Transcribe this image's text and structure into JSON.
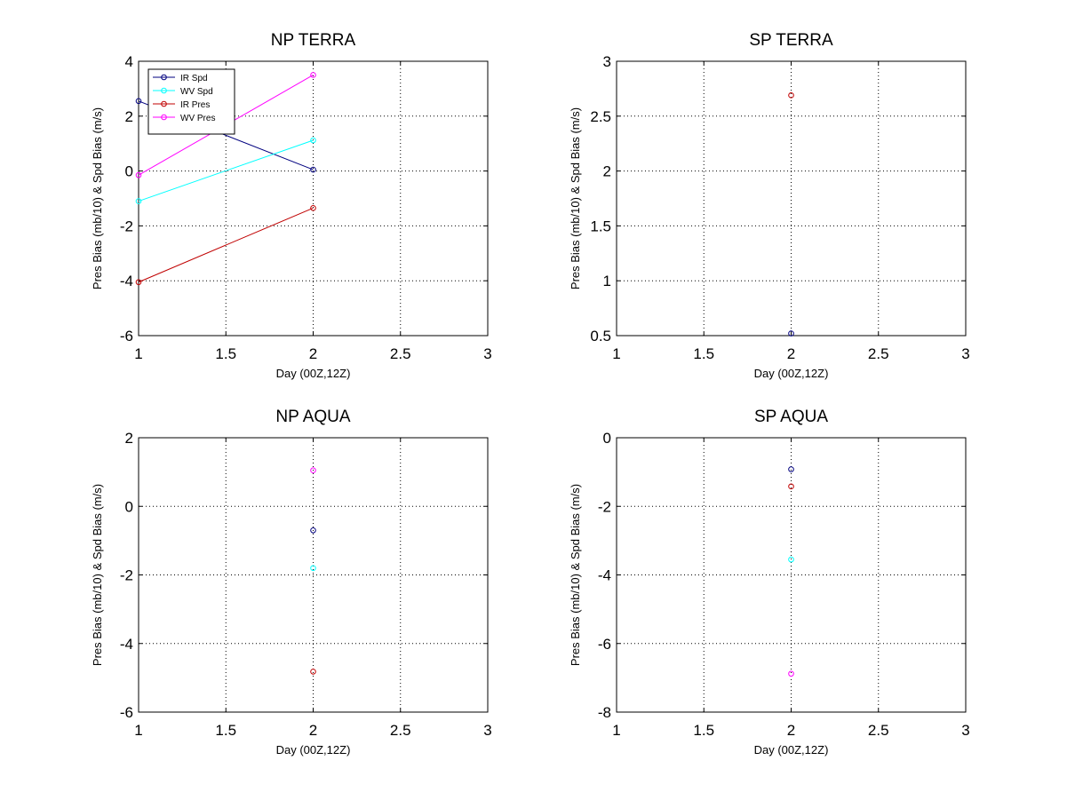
{
  "colors": {
    "background": "#ffffff",
    "axes": "#000000",
    "grid": "#000000",
    "IR Spd": "#00007f",
    "WV Spd": "#00ffff",
    "IR Pres": "#c00000",
    "WV Pres": "#ff00ff"
  },
  "chart_data": [
    {
      "type": "line",
      "title": "NP TERRA",
      "xlabel": "Day (00Z,12Z)",
      "ylabel": "Pres Bias (mb/10) & Spd Bias (m/s)",
      "xlim": [
        1,
        3
      ],
      "ylim": [
        -6,
        4
      ],
      "xticks": [
        1,
        1.5,
        2,
        2.5,
        3
      ],
      "yticks": [
        -6,
        -4,
        -2,
        0,
        2,
        4
      ],
      "xtick_labels": [
        "1",
        "1.5",
        "2",
        "2.5",
        "3"
      ],
      "ytick_labels": [
        "-6",
        "-4",
        "-2",
        "0",
        "2",
        "4"
      ],
      "grid": true,
      "legend": {
        "position": "top-left",
        "entries": [
          "IR Spd",
          "WV Spd",
          "IR Pres",
          "WV Pres"
        ]
      },
      "x": [
        1,
        2
      ],
      "series": [
        {
          "name": "IR Spd",
          "values": [
            2.55,
            0.05
          ]
        },
        {
          "name": "WV Spd",
          "values": [
            -1.1,
            1.12
          ]
        },
        {
          "name": "IR Pres",
          "values": [
            -4.05,
            -1.35
          ]
        },
        {
          "name": "WV Pres",
          "values": [
            -0.15,
            3.5
          ]
        }
      ]
    },
    {
      "type": "scatter",
      "title": "SP TERRA",
      "xlabel": "Day (00Z,12Z)",
      "ylabel": "Pres Bias (mb/10) & Spd Bias (m/s)",
      "xlim": [
        1,
        3
      ],
      "ylim": [
        0.5,
        3
      ],
      "xticks": [
        1,
        1.5,
        2,
        2.5,
        3
      ],
      "yticks": [
        0.5,
        1,
        1.5,
        2,
        2.5,
        3
      ],
      "xtick_labels": [
        "1",
        "1.5",
        "2",
        "2.5",
        "3"
      ],
      "ytick_labels": [
        "0.5",
        "1",
        "1.5",
        "2",
        "2.5",
        "3"
      ],
      "grid": true,
      "x": [
        2
      ],
      "series": [
        {
          "name": "IR Spd",
          "values": [
            0.52
          ]
        },
        {
          "name": "IR Pres",
          "values": [
            2.69
          ]
        }
      ]
    },
    {
      "type": "scatter",
      "title": "NP AQUA",
      "xlabel": "Day (00Z,12Z)",
      "ylabel": "Pres Bias (mb/10) & Spd Bias (m/s)",
      "xlim": [
        1,
        3
      ],
      "ylim": [
        -6,
        2
      ],
      "xticks": [
        1,
        1.5,
        2,
        2.5,
        3
      ],
      "yticks": [
        -6,
        -4,
        -2,
        0,
        2
      ],
      "xtick_labels": [
        "1",
        "1.5",
        "2",
        "2.5",
        "3"
      ],
      "ytick_labels": [
        "-6",
        "-4",
        "-2",
        "0",
        "2"
      ],
      "grid": true,
      "x": [
        2
      ],
      "series": [
        {
          "name": "WV Pres",
          "values": [
            1.05
          ]
        },
        {
          "name": "IR Spd",
          "values": [
            -0.7
          ]
        },
        {
          "name": "WV Spd",
          "values": [
            -1.8
          ]
        },
        {
          "name": "IR Pres",
          "values": [
            -4.82
          ]
        }
      ]
    },
    {
      "type": "scatter",
      "title": "SP AQUA",
      "xlabel": "Day (00Z,12Z)",
      "ylabel": "Pres Bias (mb/10) & Spd Bias (m/s)",
      "xlim": [
        1,
        3
      ],
      "ylim": [
        -8,
        0
      ],
      "xticks": [
        1,
        1.5,
        2,
        2.5,
        3
      ],
      "yticks": [
        -8,
        -6,
        -4,
        -2,
        0
      ],
      "xtick_labels": [
        "1",
        "1.5",
        "2",
        "2.5",
        "3"
      ],
      "ytick_labels": [
        "-8",
        "-6",
        "-4",
        "-2",
        "0"
      ],
      "grid": true,
      "x": [
        2
      ],
      "series": [
        {
          "name": "IR Spd",
          "values": [
            -0.92
          ]
        },
        {
          "name": "IR Pres",
          "values": [
            -1.42
          ]
        },
        {
          "name": "WV Spd",
          "values": [
            -3.55
          ]
        },
        {
          "name": "WV Pres",
          "values": [
            -6.88
          ]
        }
      ]
    }
  ]
}
